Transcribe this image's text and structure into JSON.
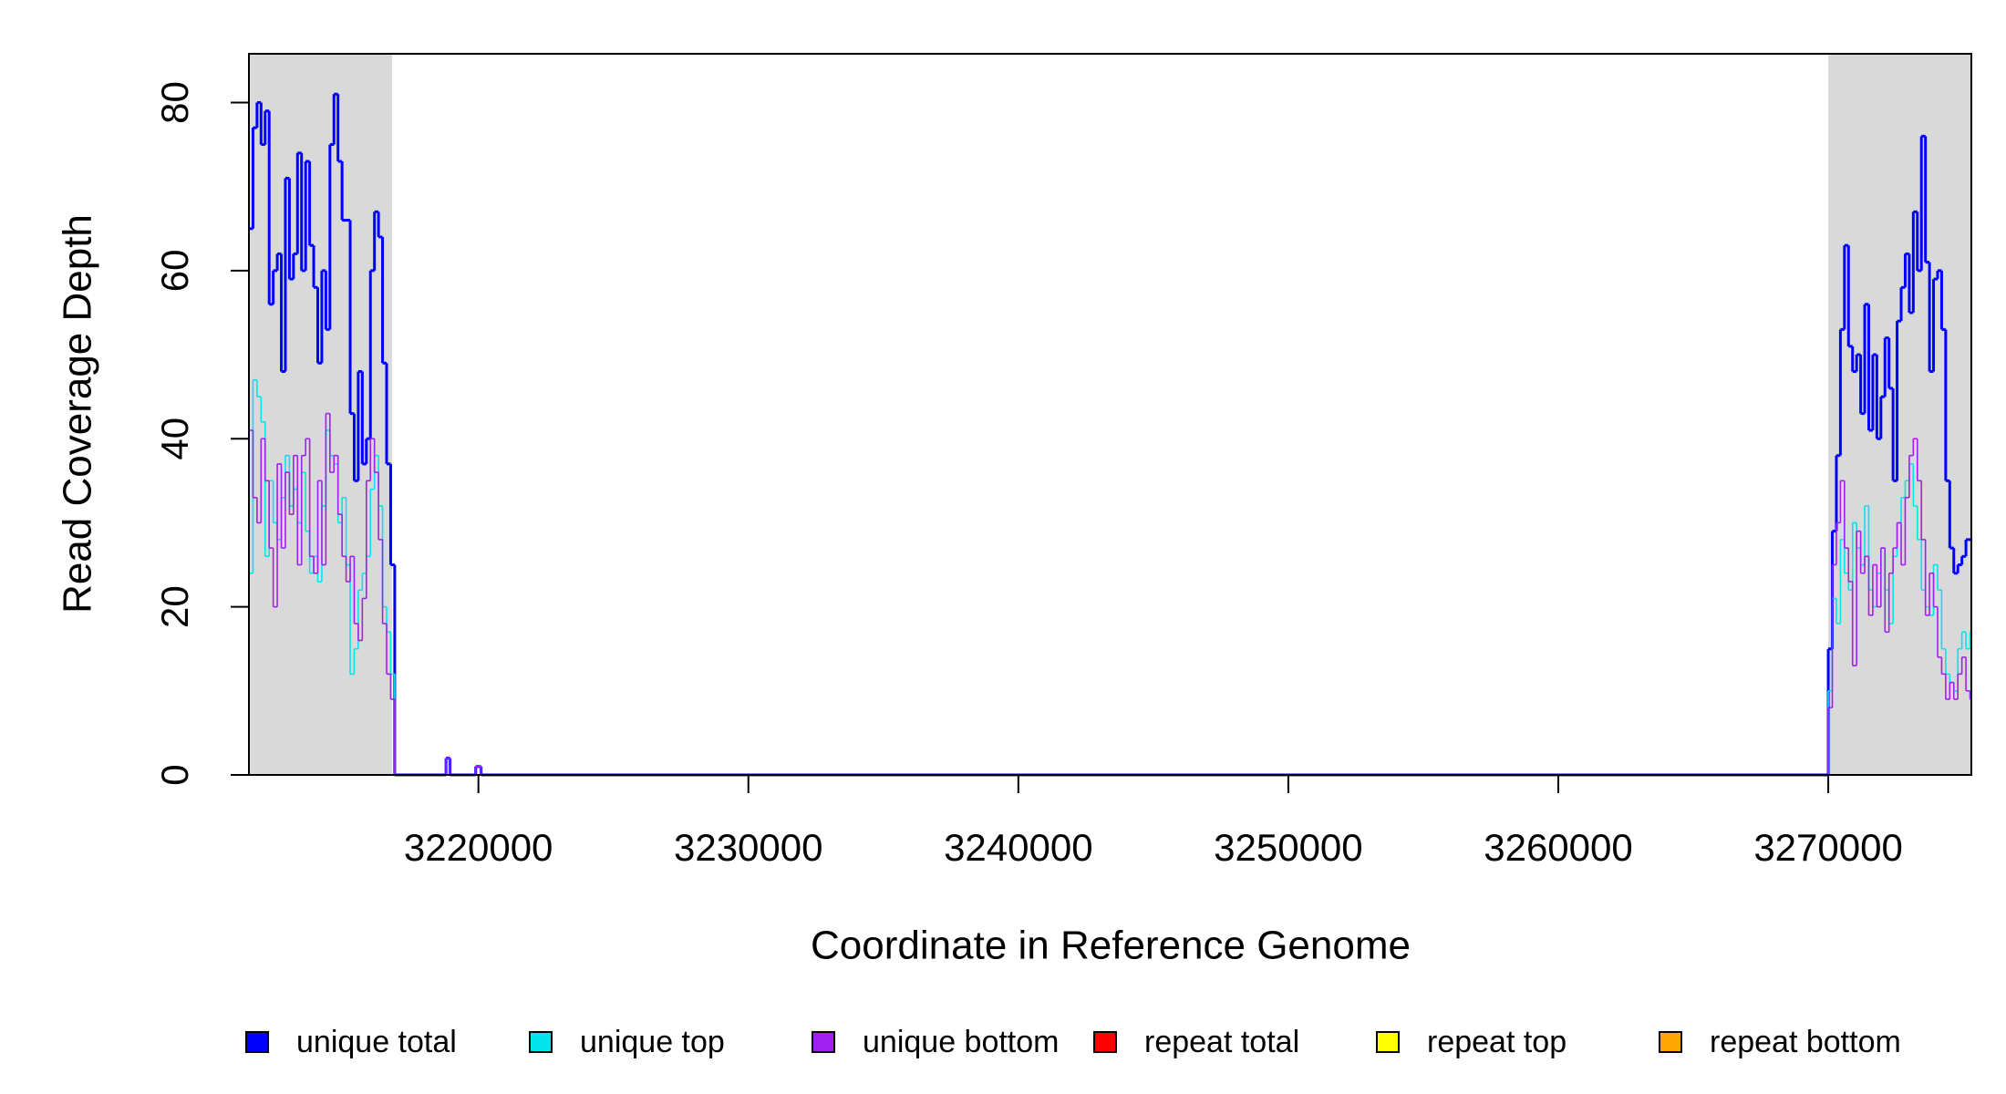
{
  "chart_data": {
    "type": "line",
    "step": true,
    "x_label": "Coordinate in Reference Genome",
    "y_label": "Read Coverage Depth",
    "xlim": [
      3211500,
      3275300
    ],
    "ylim": [
      0,
      85.8
    ],
    "xticks": [
      3220000,
      3230000,
      3240000,
      3250000,
      3260000,
      3270000
    ],
    "yticks": [
      0,
      20,
      40,
      60,
      80
    ],
    "shaded_regions": [
      [
        3211500,
        3216800
      ],
      [
        3270000,
        3275300
      ]
    ],
    "shade_color": "#d9d9d9",
    "x": [
      3211500,
      3211650,
      3211800,
      3211950,
      3212100,
      3212250,
      3212400,
      3212550,
      3212700,
      3212850,
      3213000,
      3213150,
      3213300,
      3213450,
      3213600,
      3213750,
      3213900,
      3214050,
      3214200,
      3214350,
      3214500,
      3214650,
      3214800,
      3214950,
      3215100,
      3215250,
      3215400,
      3215550,
      3215700,
      3215850,
      3216000,
      3216150,
      3216300,
      3216450,
      3216600,
      3216750,
      3216900,
      3218800,
      3218950,
      3219900,
      3220100,
      3270000,
      3270150,
      3270300,
      3270450,
      3270600,
      3270750,
      3270900,
      3271050,
      3271200,
      3271350,
      3271500,
      3271650,
      3271800,
      3271950,
      3272100,
      3272250,
      3272400,
      3272550,
      3272700,
      3272850,
      3273000,
      3273150,
      3273300,
      3273450,
      3273600,
      3273750,
      3273900,
      3274050,
      3274200,
      3274350,
      3274500,
      3274650,
      3274800,
      3274950,
      3275100,
      3275250
    ],
    "series": [
      {
        "name": "unique total",
        "color": "#0000ff",
        "values": [
          65,
          77,
          80,
          75,
          79,
          56,
          60,
          62,
          48,
          71,
          59,
          62,
          74,
          60,
          73,
          63,
          58,
          49,
          60,
          53,
          75,
          81,
          73,
          66,
          66,
          43,
          35,
          48,
          37,
          40,
          60,
          67,
          64,
          49,
          37,
          25,
          0,
          2,
          0,
          1,
          0,
          15,
          29,
          38,
          53,
          63,
          51,
          48,
          50,
          43,
          56,
          41,
          50,
          40,
          45,
          52,
          46,
          35,
          54,
          58,
          62,
          55,
          67,
          60,
          76,
          61,
          48,
          59,
          60,
          53,
          35,
          27,
          24,
          25,
          26,
          28,
          28
        ]
      },
      {
        "name": "unique top",
        "color": "#00e5ee",
        "values": [
          24,
          47,
          45,
          42,
          26,
          35,
          30,
          28,
          33,
          38,
          32,
          34,
          30,
          36,
          29,
          24,
          26,
          23,
          32,
          41,
          38,
          37,
          30,
          33,
          25,
          12,
          15,
          22,
          24,
          26,
          34,
          38,
          32,
          20,
          17,
          12,
          0,
          0,
          0,
          0,
          0,
          10,
          21,
          18,
          28,
          24,
          22,
          30,
          27,
          25,
          32,
          22,
          20,
          24,
          27,
          22,
          18,
          26,
          30,
          33,
          35,
          37,
          32,
          28,
          22,
          20,
          19,
          25,
          22,
          15,
          12,
          11,
          10,
          15,
          17,
          15,
          17
        ]
      },
      {
        "name": "unique bottom",
        "color": "#a020f0",
        "values": [
          41,
          33,
          30,
          40,
          35,
          27,
          20,
          37,
          27,
          36,
          31,
          38,
          25,
          38,
          40,
          26,
          24,
          35,
          25,
          43,
          36,
          38,
          31,
          26,
          23,
          26,
          18,
          16,
          21,
          35,
          40,
          36,
          28,
          18,
          12,
          9,
          0,
          2,
          0,
          1,
          0,
          8,
          25,
          30,
          35,
          27,
          23,
          13,
          29,
          24,
          26,
          19,
          25,
          20,
          27,
          17,
          24,
          27,
          30,
          25,
          33,
          38,
          40,
          35,
          28,
          19,
          24,
          20,
          14,
          12,
          9,
          11,
          9,
          12,
          14,
          10,
          9
        ]
      },
      {
        "name": "repeat total",
        "color": "#ff0000",
        "values": [
          0,
          0,
          0,
          0,
          0,
          0,
          0,
          0,
          0,
          0,
          0,
          0,
          0,
          0,
          0,
          0,
          0,
          0,
          0,
          0,
          0,
          0,
          0,
          0,
          0,
          0,
          0,
          0,
          0,
          0,
          0,
          0,
          0,
          0,
          0,
          0,
          0,
          0,
          0,
          0,
          0,
          0,
          0,
          0,
          0,
          0,
          0,
          0,
          0,
          0,
          0,
          0,
          0,
          0,
          0,
          0,
          0,
          0,
          0,
          0,
          0,
          0,
          0,
          0,
          0,
          0,
          0,
          0,
          0,
          0,
          0,
          0,
          0,
          0,
          0,
          0,
          0
        ]
      },
      {
        "name": "repeat top",
        "color": "#ffff00",
        "values": [
          0,
          0,
          0,
          0,
          0,
          0,
          0,
          0,
          0,
          0,
          0,
          0,
          0,
          0,
          0,
          0,
          0,
          0,
          0,
          0,
          0,
          0,
          0,
          0,
          0,
          0,
          0,
          0,
          0,
          0,
          0,
          0,
          0,
          0,
          0,
          0,
          0,
          0,
          0,
          0,
          0,
          0,
          0,
          0,
          0,
          0,
          0,
          0,
          0,
          0,
          0,
          0,
          0,
          0,
          0,
          0,
          0,
          0,
          0,
          0,
          0,
          0,
          0,
          0,
          0,
          0,
          0,
          0,
          0,
          0,
          0,
          0,
          0,
          0,
          0,
          0,
          0
        ]
      },
      {
        "name": "repeat bottom",
        "color": "#ffa500",
        "values": [
          0,
          0,
          0,
          0,
          0,
          0,
          0,
          0,
          0,
          0,
          0,
          0,
          0,
          0,
          0,
          0,
          0,
          0,
          0,
          0,
          0,
          0,
          0,
          0,
          0,
          0,
          0,
          0,
          0,
          0,
          0,
          0,
          0,
          0,
          0,
          0,
          0,
          0,
          0,
          0,
          0,
          0,
          0,
          0,
          0,
          0,
          0,
          0,
          0,
          0,
          0,
          0,
          0,
          0,
          0,
          0,
          0,
          0,
          0,
          0,
          0,
          0,
          0,
          0,
          0,
          0,
          0,
          0,
          0,
          0,
          0,
          0,
          0,
          0,
          0,
          0,
          0
        ]
      }
    ]
  }
}
